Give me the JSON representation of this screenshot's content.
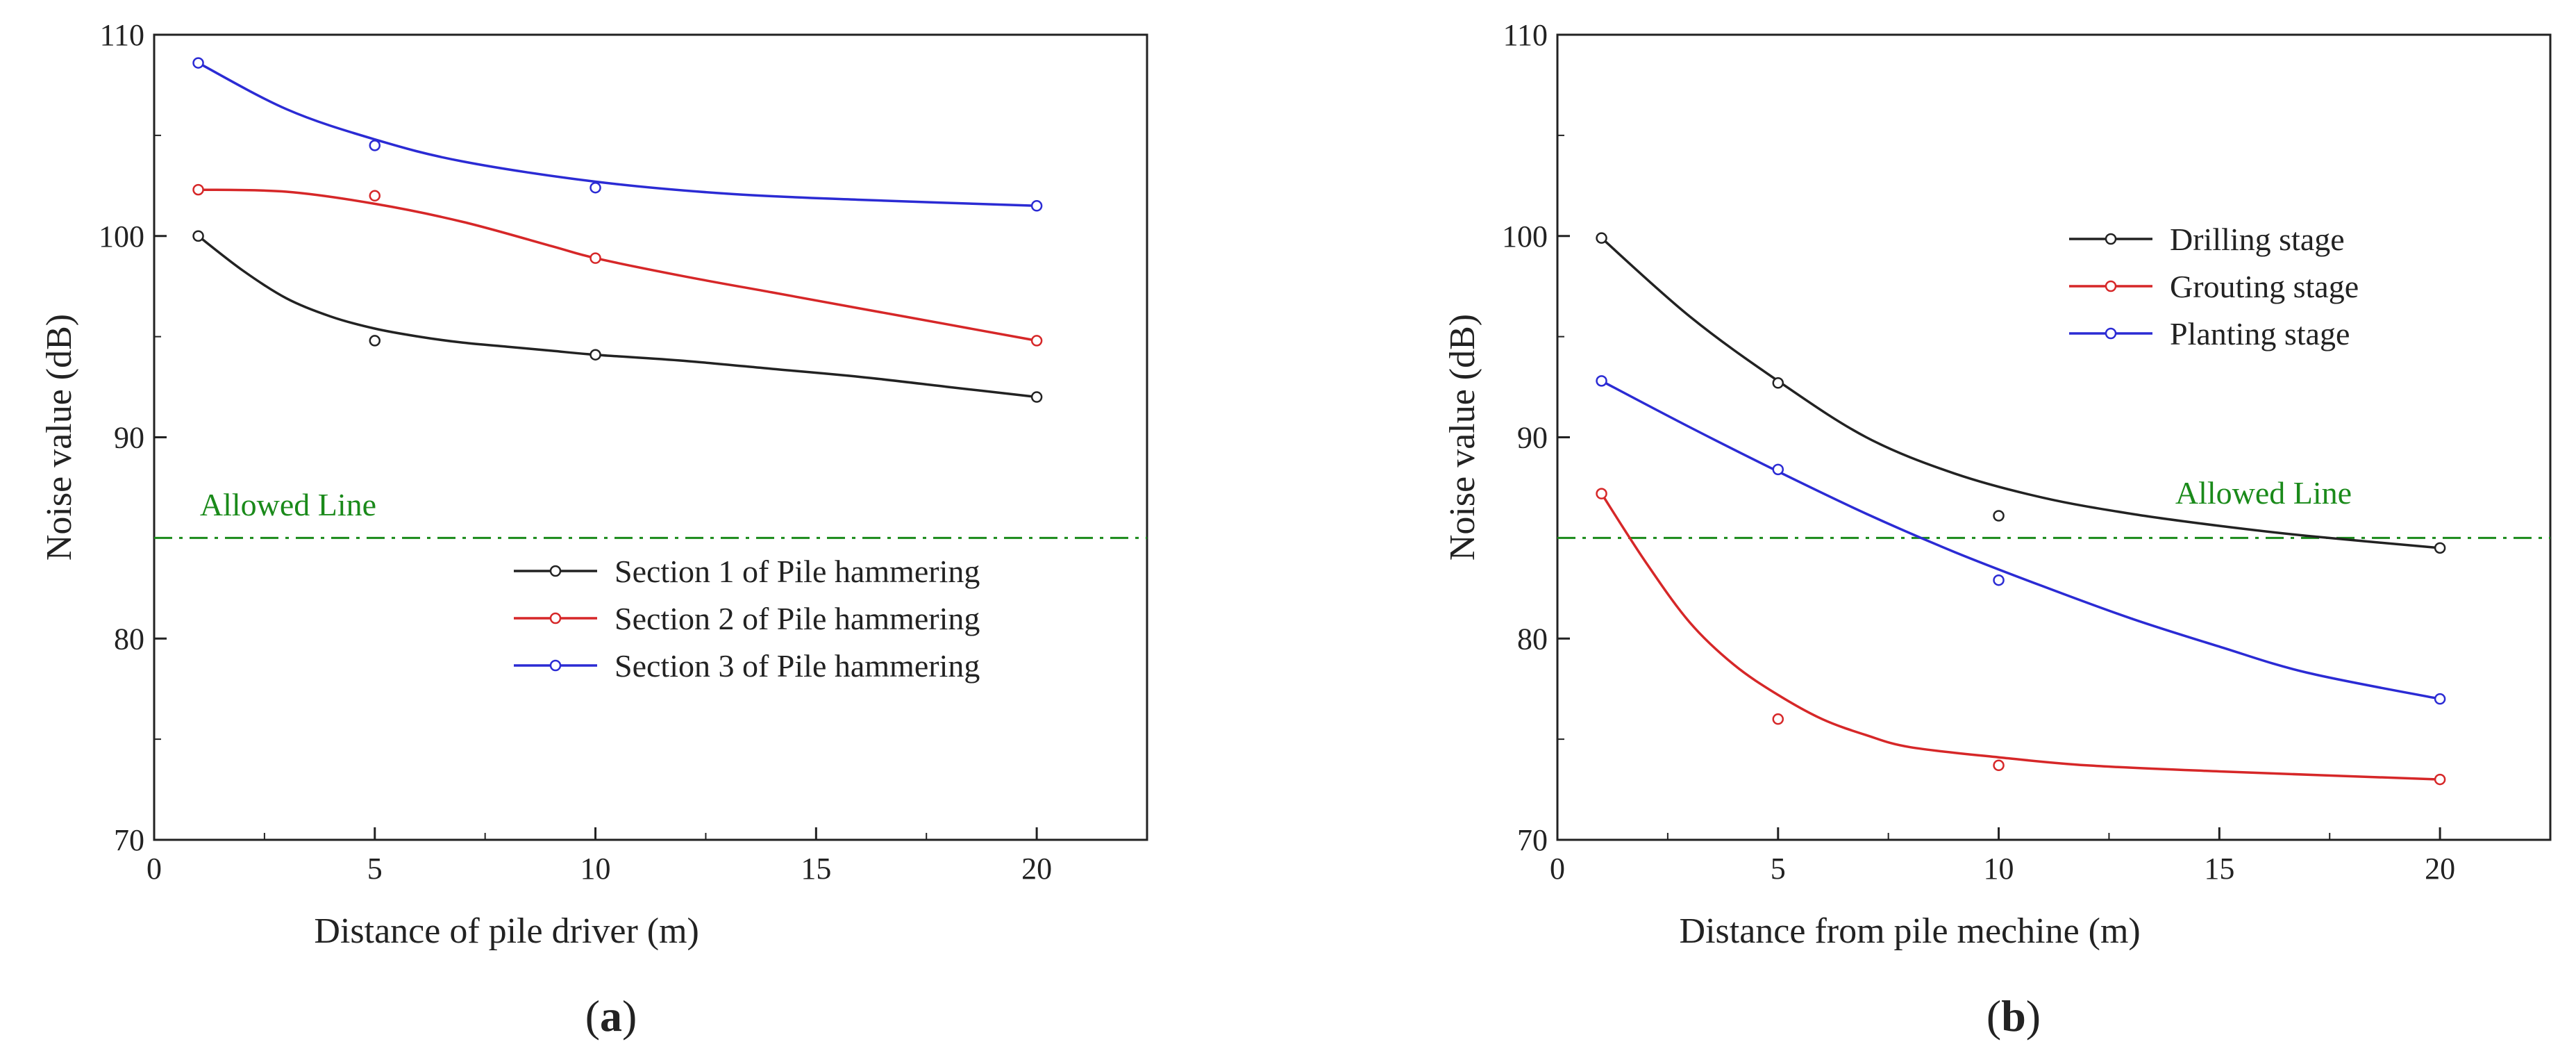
{
  "chart_data": [
    {
      "type": "line",
      "panel_label_open": "(",
      "panel_label_letter": "a",
      "panel_label_close": ")",
      "xlabel": "Distance of pile driver (m)",
      "ylabel": "Noise value (dB)",
      "xlim": [
        0,
        22.5
      ],
      "ylim": [
        70,
        110
      ],
      "x_ticks": [
        "0",
        "5",
        "10",
        "15",
        "20"
      ],
      "y_ticks": [
        "70",
        "80",
        "90",
        "100",
        "110"
      ],
      "x_tick_values": [
        0,
        5,
        10,
        15,
        20
      ],
      "y_tick_values": [
        70,
        80,
        90,
        100,
        110
      ],
      "legend_position": "lower-right",
      "reference_line": {
        "label": "Allowed Line",
        "value": 85,
        "color": "#1a8a1a"
      },
      "series": [
        {
          "name": "Section 1 of Pile hammering",
          "color": "#222222",
          "x": [
            1,
            5,
            10,
            20
          ],
          "values": [
            100.0,
            94.8,
            94.1,
            92.0
          ],
          "curve": [
            [
              1,
              100.0
            ],
            [
              2,
              98.3
            ],
            [
              3,
              96.9
            ],
            [
              4,
              96.0
            ],
            [
              5,
              95.4
            ],
            [
              6,
              95.0
            ],
            [
              7,
              94.7
            ],
            [
              8,
              94.5
            ],
            [
              9,
              94.3
            ],
            [
              10,
              94.1
            ],
            [
              12,
              93.8
            ],
            [
              14,
              93.4
            ],
            [
              16,
              93.0
            ],
            [
              18,
              92.5
            ],
            [
              20,
              92.0
            ]
          ]
        },
        {
          "name": "Section 2 of Pile hammering",
          "color": "#d62728",
          "x": [
            1,
            5,
            10,
            20
          ],
          "values": [
            102.3,
            102.0,
            98.9,
            94.8
          ],
          "curve": [
            [
              1,
              102.3
            ],
            [
              3,
              102.2
            ],
            [
              5,
              101.6
            ],
            [
              7,
              100.7
            ],
            [
              9,
              99.5
            ],
            [
              10,
              98.9
            ],
            [
              12,
              98.0
            ],
            [
              14,
              97.2
            ],
            [
              16,
              96.4
            ],
            [
              18,
              95.6
            ],
            [
              20,
              94.8
            ]
          ]
        },
        {
          "name": "Section 3 of Pile hammering",
          "color": "#2b2bd4",
          "x": [
            1,
            5,
            10,
            20
          ],
          "values": [
            108.6,
            104.5,
            102.4,
            101.5
          ],
          "curve": [
            [
              1,
              108.6
            ],
            [
              3,
              106.3
            ],
            [
              5,
              104.8
            ],
            [
              7,
              103.7
            ],
            [
              10,
              102.7
            ],
            [
              13,
              102.1
            ],
            [
              16,
              101.8
            ],
            [
              20,
              101.5
            ]
          ]
        }
      ]
    },
    {
      "type": "line",
      "panel_label_open": "(",
      "panel_label_letter": "b",
      "panel_label_close": ")",
      "xlabel": "Distance from pile mechine (m)",
      "ylabel": "Noise value (dB)",
      "xlim": [
        0,
        22.5
      ],
      "ylim": [
        70,
        110
      ],
      "x_ticks": [
        "0",
        "5",
        "10",
        "15",
        "20"
      ],
      "y_ticks": [
        "70",
        "80",
        "90",
        "100",
        "110"
      ],
      "x_tick_values": [
        0,
        5,
        10,
        15,
        20
      ],
      "y_tick_values": [
        70,
        80,
        90,
        100,
        110
      ],
      "legend_position": "top-right",
      "reference_line": {
        "label": "Allowed Line",
        "value": 85,
        "color": "#1a8a1a"
      },
      "series": [
        {
          "name": "Drilling stage",
          "color": "#222222",
          "x": [
            1,
            5,
            10,
            20
          ],
          "values": [
            99.9,
            92.7,
            86.1,
            84.5
          ],
          "curve": [
            [
              1,
              99.9
            ],
            [
              3,
              96.0
            ],
            [
              5,
              92.8
            ],
            [
              7,
              90.0
            ],
            [
              9,
              88.2
            ],
            [
              11,
              87.0
            ],
            [
              13,
              86.2
            ],
            [
              15,
              85.6
            ],
            [
              17,
              85.1
            ],
            [
              20,
              84.5
            ]
          ]
        },
        {
          "name": "Grouting stage",
          "color": "#d62728",
          "x": [
            1,
            5,
            10,
            20
          ],
          "values": [
            87.2,
            76.0,
            73.7,
            73.0
          ],
          "curve": [
            [
              1,
              87.2
            ],
            [
              2,
              83.8
            ],
            [
              3,
              80.8
            ],
            [
              4,
              78.7
            ],
            [
              5,
              77.2
            ],
            [
              6,
              76.0
            ],
            [
              7,
              75.2
            ],
            [
              8,
              74.6
            ],
            [
              10,
              74.1
            ],
            [
              12,
              73.7
            ],
            [
              15,
              73.4
            ],
            [
              20,
              73.0
            ]
          ]
        },
        {
          "name": "Planting stage",
          "color": "#2b2bd4",
          "x": [
            1,
            5,
            10,
            20
          ],
          "values": [
            92.8,
            88.4,
            82.9,
            77.0
          ],
          "curve": [
            [
              1,
              92.8
            ],
            [
              3,
              90.5
            ],
            [
              5,
              88.3
            ],
            [
              7,
              86.2
            ],
            [
              9,
              84.3
            ],
            [
              11,
              82.6
            ],
            [
              13,
              81.0
            ],
            [
              15,
              79.6
            ],
            [
              17,
              78.3
            ],
            [
              20,
              77.0
            ]
          ]
        }
      ]
    }
  ]
}
